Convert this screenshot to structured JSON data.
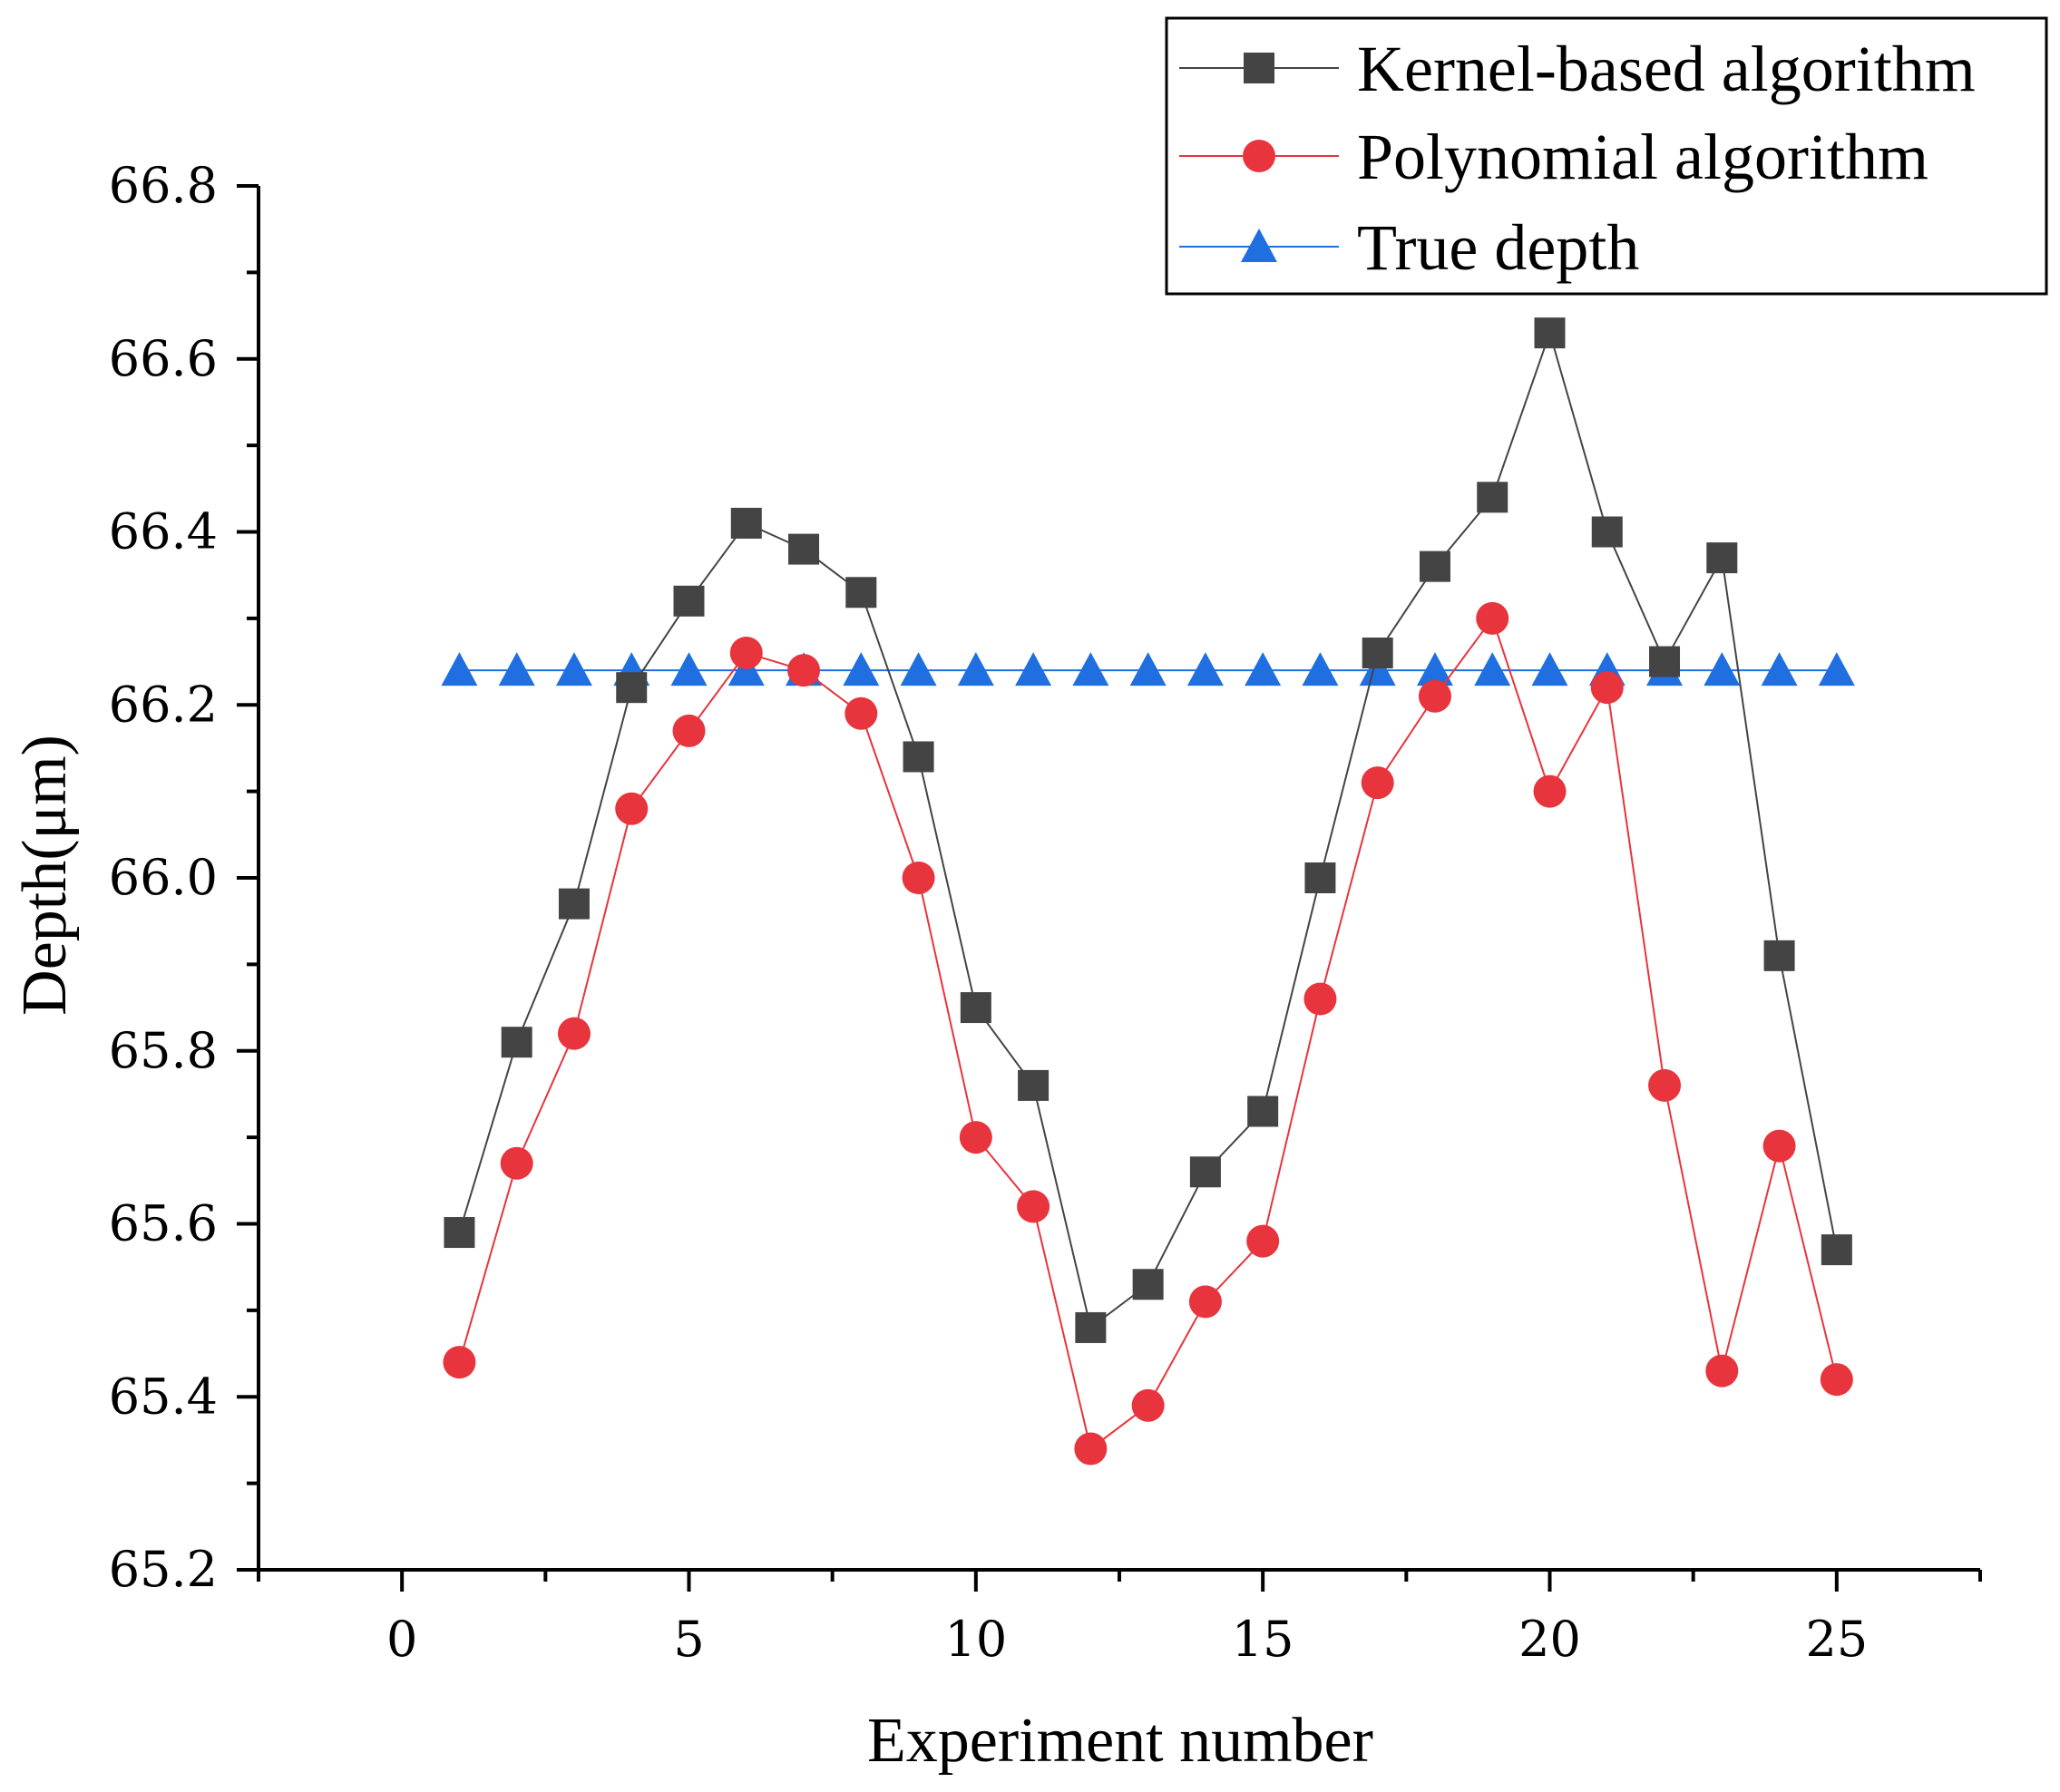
{
  "chart_data": {
    "type": "line",
    "title": "",
    "xlabel": "Experiment number",
    "ylabel": "Depth(μm)",
    "xlim": [
      -2.5,
      27.5
    ],
    "ylim": [
      65.2,
      66.8
    ],
    "xticks": [
      0,
      5,
      10,
      15,
      20,
      25
    ],
    "yticks": [
      65.2,
      65.4,
      65.6,
      65.8,
      66.0,
      66.2,
      66.4,
      66.6,
      66.8
    ],
    "xtick_labels": [
      "0",
      "5",
      "10",
      "15",
      "20",
      "25"
    ],
    "ytick_labels": [
      "65.2",
      "65.4",
      "65.6",
      "65.8",
      "66.0",
      "66.2",
      "66.4",
      "66.6",
      "66.8"
    ],
    "grid": false,
    "legend_position": "top-right",
    "x": [
      1,
      2,
      3,
      4,
      5,
      6,
      7,
      8,
      9,
      10,
      11,
      12,
      13,
      14,
      15,
      16,
      17,
      18,
      19,
      20,
      21,
      22,
      23,
      24,
      25
    ],
    "series": [
      {
        "name": "Kernel-based algorithm",
        "color": "#444444",
        "marker": "square",
        "values": [
          65.59,
          65.81,
          65.97,
          66.22,
          66.32,
          66.41,
          66.38,
          66.33,
          66.14,
          65.85,
          65.76,
          65.48,
          65.53,
          65.66,
          65.73,
          66.0,
          66.26,
          66.36,
          66.44,
          66.63,
          66.4,
          66.25,
          66.37,
          65.91,
          65.57
        ]
      },
      {
        "name": "Polynomial algorithm",
        "color": "#e8343c",
        "marker": "circle",
        "values": [
          65.44,
          65.67,
          65.82,
          66.08,
          66.17,
          66.26,
          66.24,
          66.19,
          66.0,
          65.7,
          65.62,
          65.34,
          65.39,
          65.51,
          65.58,
          65.86,
          66.11,
          66.21,
          66.3,
          66.1,
          66.22,
          65.76,
          65.43,
          65.69,
          65.42
        ]
      },
      {
        "name": "True depth",
        "color": "#1f6fe0",
        "marker": "triangle",
        "values": [
          66.24,
          66.24,
          66.24,
          66.24,
          66.24,
          66.24,
          66.24,
          66.24,
          66.24,
          66.24,
          66.24,
          66.24,
          66.24,
          66.24,
          66.24,
          66.24,
          66.24,
          66.24,
          66.24,
          66.24,
          66.24,
          66.24,
          66.24,
          66.24,
          66.24
        ]
      }
    ]
  }
}
